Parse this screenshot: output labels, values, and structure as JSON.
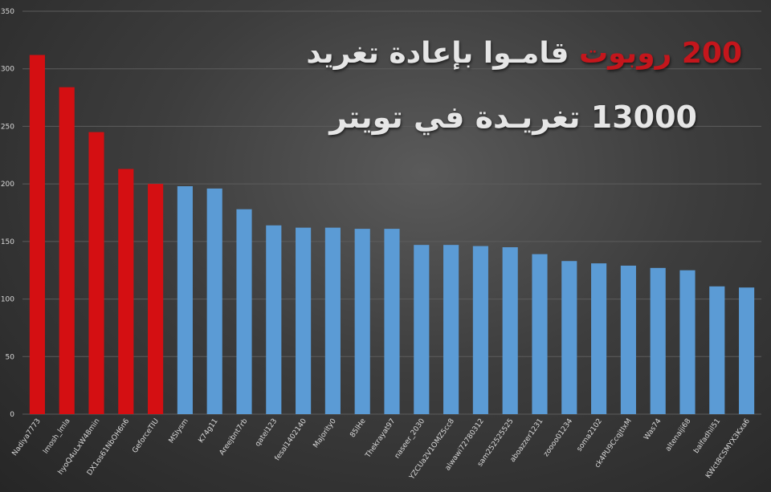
{
  "title": {
    "line1_highlight": "200 روبوت",
    "line1_rest": " قامـوا بإعادة تغريد",
    "line2": "13000 تغريـدة في تويتر"
  },
  "colors": {
    "highlight_bar": "#d40f12",
    "normal_bar": "#5b9bd5",
    "title_highlight": "#c4161c",
    "title_text": "#e6e6e6",
    "grid": "#5c5c5c",
    "tick_text": "#d9d9d9"
  },
  "chart_data": {
    "type": "bar",
    "title": "200 روبوت قامـوا بإعادة تغريد 13000 تغريـدة في تويتر",
    "xlabel": "",
    "ylabel": "",
    "ylim": [
      0,
      350
    ],
    "yticks": [
      0,
      50,
      100,
      150,
      200,
      250,
      300,
      350
    ],
    "grid": true,
    "categories": [
      "Nadiya7773",
      "lmosh_lmla",
      "hyoQ4uLxW48min",
      "DX1os61NbOH6n6",
      "GeforceTIU",
      "MSIysm",
      "K74g11",
      "Areejbnt7rb",
      "qatel123",
      "fesal1402140",
      "Majority0",
      "85lHe",
      "Thekrayat97",
      "naseer_2030",
      "YZCUa2V1OMZ5cc8",
      "alwawi72780312",
      "sam252525525",
      "aboazzer1231",
      "zoooo01234",
      "soma2102",
      "ck4PU9CcqjtIxM",
      "Was74",
      "altenaiji68",
      "balfadhil51",
      "KWct8CSMYX3Kxa6"
    ],
    "values": [
      312,
      284,
      245,
      213,
      200,
      198,
      196,
      178,
      164,
      162,
      162,
      161,
      161,
      147,
      147,
      146,
      145,
      139,
      133,
      131,
      129,
      127,
      125,
      111,
      110
    ],
    "highlighted_count": 5
  }
}
